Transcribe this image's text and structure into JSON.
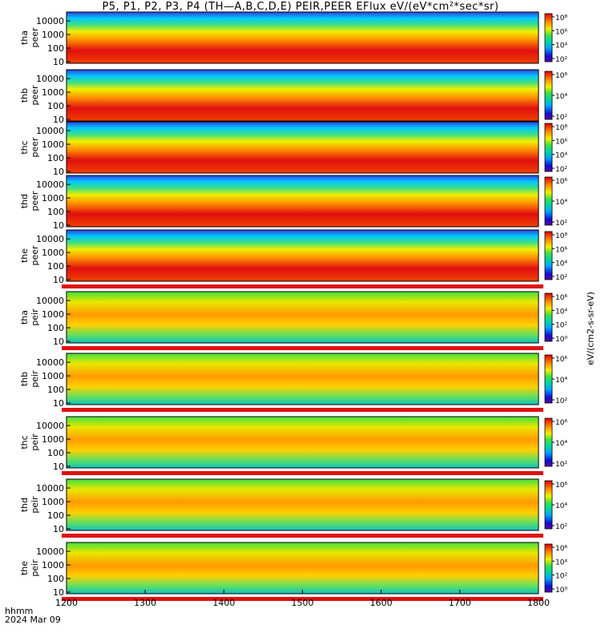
{
  "title": "P5, P1, P2, P3, P4 (TH—A,B,C,D,E) PEIR,PEER EFlux eV/(eV*cm²*sec*sr)",
  "footer": {
    "time_format": "hhmm",
    "date": "2024 Mar 09"
  },
  "unit_label": "eV/(cm2-s-sr-eV)",
  "chart_data": {
    "type": "heatmap",
    "x_axis": {
      "range": [
        1200,
        1800
      ],
      "ticks": [
        "1200",
        "1300",
        "1400",
        "1500",
        "1600",
        "1700",
        "1800"
      ]
    },
    "y_axis": {
      "scale": "log",
      "ticks": [
        "10",
        "100",
        "1000",
        "10000"
      ]
    },
    "panels": [
      {
        "probe": "tha",
        "species": "peer",
        "colorbar_ticks": [
          "10²",
          "10⁴",
          "10⁶",
          "10⁸"
        ]
      },
      {
        "probe": "thb",
        "species": "peer",
        "colorbar_ticks": [
          "10²",
          "10⁴",
          "10⁶"
        ]
      },
      {
        "probe": "thc",
        "species": "peer",
        "colorbar_ticks": [
          "10²",
          "10⁴",
          "10⁶",
          "10⁸"
        ]
      },
      {
        "probe": "thd",
        "species": "peer",
        "colorbar_ticks": [
          "10²",
          "10⁴",
          "10⁶"
        ]
      },
      {
        "probe": "the",
        "species": "peer",
        "colorbar_ticks": [
          "10²",
          "10⁴",
          "10⁶",
          "10⁸"
        ]
      },
      {
        "probe": "tha",
        "species": "peir",
        "colorbar_ticks": [
          "10⁰",
          "10²",
          "10⁴",
          "10⁶"
        ]
      },
      {
        "probe": "thb",
        "species": "peir",
        "colorbar_ticks": [
          "10²",
          "10⁴",
          "10⁶"
        ]
      },
      {
        "probe": "thc",
        "species": "peir",
        "colorbar_ticks": [
          "10²",
          "10⁴",
          "10⁶"
        ]
      },
      {
        "probe": "thd",
        "species": "peir",
        "colorbar_ticks": [
          "10²",
          "10⁴",
          "10⁶"
        ]
      },
      {
        "probe": "the",
        "species": "peir",
        "colorbar_ticks": [
          "10⁰",
          "10²",
          "10⁴",
          "10⁶"
        ]
      }
    ]
  }
}
